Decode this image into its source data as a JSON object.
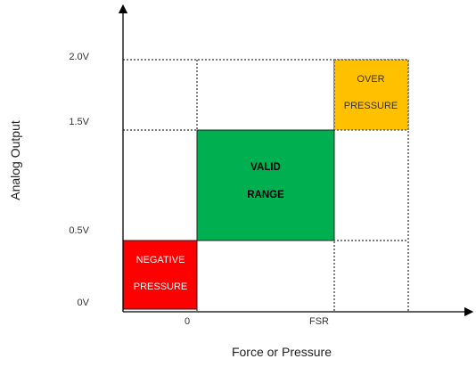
{
  "axes": {
    "y_title": "Analog Output",
    "x_title": "Force or Pressure",
    "y_ticks": [
      "2.0V",
      "1.5V",
      "0.5V",
      "0V"
    ],
    "x_ticks": [
      "0",
      "FSR"
    ]
  },
  "regions": {
    "negative": {
      "line1": "NEGATIVE",
      "line2": "PRESSURE",
      "color": "#ff0000",
      "text_color": "#ffffff"
    },
    "valid": {
      "line1": "VALID",
      "line2": "RANGE",
      "color": "#00b050",
      "text_color": "#000000"
    },
    "over": {
      "line1": "OVER",
      "line2": "PRESSURE",
      "color": "#ffc000",
      "text_color": "#333333"
    }
  }
}
